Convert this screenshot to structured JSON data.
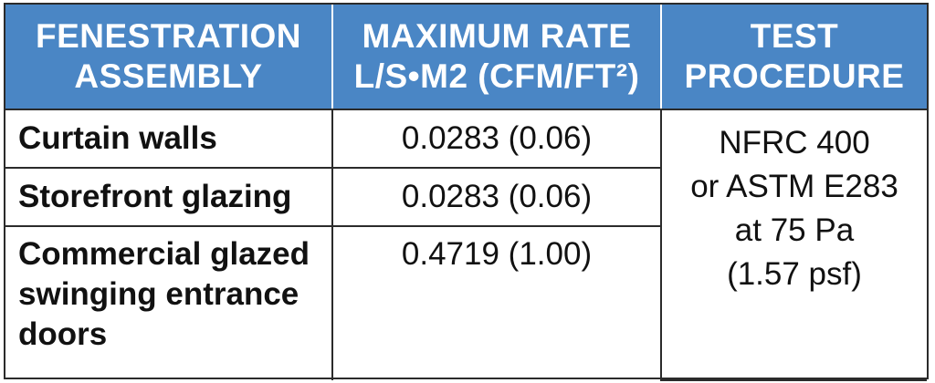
{
  "table": {
    "headers": {
      "col1": [
        "FENESTRATION",
        "ASSEMBLY"
      ],
      "col2": [
        "MAXIMUM RATE",
        "L/S•M2 (CFM/FT²)"
      ],
      "col3": [
        "TEST",
        "PROCEDURE"
      ]
    },
    "rows": [
      {
        "assembly": [
          "Curtain walls"
        ],
        "rate": "0.0283 (0.06)"
      },
      {
        "assembly": [
          "Storefront glazing"
        ],
        "rate": "0.0283 (0.06)"
      },
      {
        "assembly": [
          "Commercial glazed",
          "swinging entrance",
          "doors"
        ],
        "rate": "0.4719 (1.00)"
      }
    ],
    "procedure": [
      "NFRC 400",
      "or ASTM E283",
      "at 75 Pa",
      "(1.57 psf)"
    ]
  },
  "colors": {
    "header_bg": "#4a86c5",
    "header_text": "#ffffff",
    "border": "#2b2b2b",
    "body_text": "#111111"
  }
}
